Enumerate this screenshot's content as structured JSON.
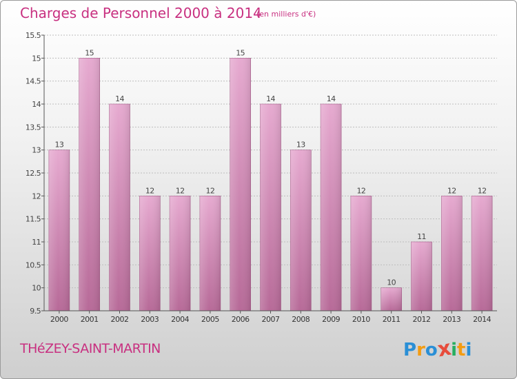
{
  "header": {
    "title": "Charges de Personnel 2000 à 2014",
    "unit": "(en milliers d'€)"
  },
  "footer": {
    "place": "THéZEY-SAINT-MARTIN"
  },
  "logo": {
    "letters": [
      "P",
      "r",
      "o",
      "x",
      "i",
      "t",
      "i"
    ],
    "colors": [
      "#2a8fd6",
      "#f39c12",
      "#2a8fd6",
      "#e74c3c",
      "#27ae60",
      "#f39c12",
      "#2a8fd6"
    ]
  },
  "colors": {
    "bar_top": "#e6aad0",
    "bar_bottom": "#b76a98",
    "text": "#c83080"
  },
  "chart_data": {
    "type": "bar",
    "categories": [
      "2000",
      "2001",
      "2002",
      "2003",
      "2004",
      "2005",
      "2006",
      "2007",
      "2008",
      "2009",
      "2010",
      "2011",
      "2012",
      "2013",
      "2014"
    ],
    "values": [
      13,
      15,
      14,
      12,
      12,
      12,
      15,
      14,
      13,
      14,
      12,
      10,
      11,
      12,
      12
    ],
    "value_labels": [
      "13",
      "15",
      "14",
      "12",
      "12",
      "12",
      "15",
      "14",
      "13",
      "14",
      "12",
      "10",
      "11",
      "12",
      "12"
    ],
    "ylim": [
      9.5,
      15.5
    ],
    "yticks": [
      9.5,
      10,
      10.5,
      11,
      11.5,
      12,
      12.5,
      13,
      13.5,
      14,
      14.5,
      15,
      15.5
    ],
    "ytick_labels": [
      "9.5",
      "10",
      "10.5",
      "11",
      "11.5",
      "12",
      "12.5",
      "13",
      "13.5",
      "14",
      "14.5",
      "15",
      "15.5"
    ],
    "grid": true
  }
}
